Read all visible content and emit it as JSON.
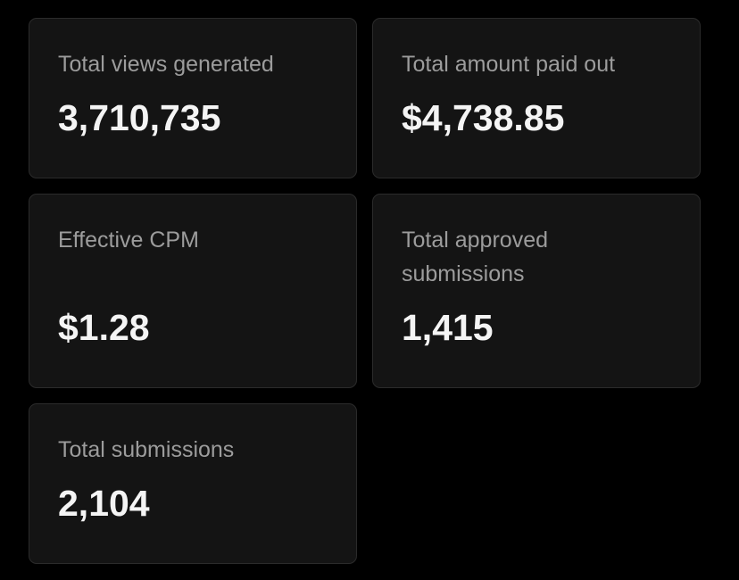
{
  "cards": [
    {
      "label": "Total views generated",
      "value": "3,710,735"
    },
    {
      "label": "Total amount paid out",
      "value": "$4,738.85"
    },
    {
      "label": "Effective CPM",
      "value": "$1.28"
    },
    {
      "label": "Total approved submissions",
      "value": "1,415"
    },
    {
      "label": "Total submissions",
      "value": "2,104"
    }
  ]
}
